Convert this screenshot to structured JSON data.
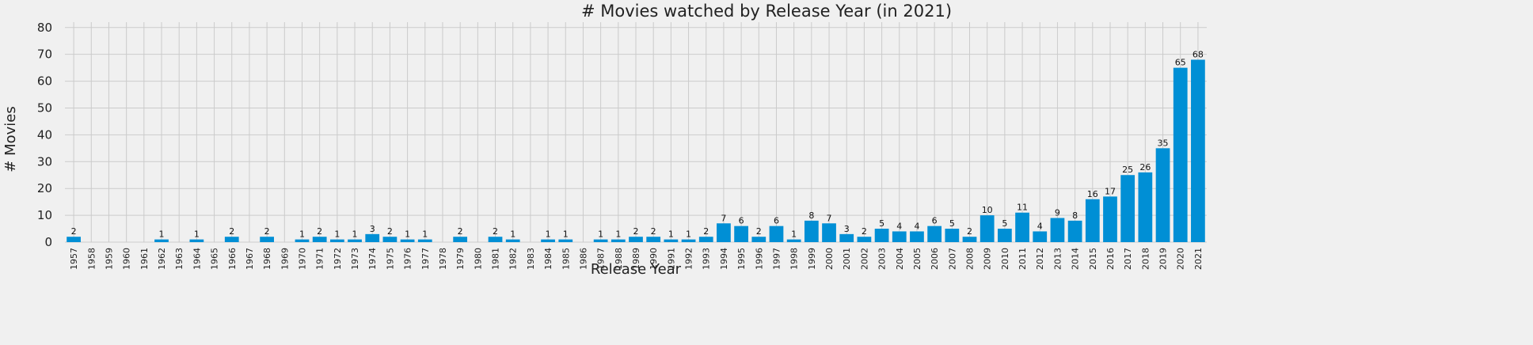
{
  "chart_data": {
    "type": "bar",
    "title": "# Movies watched by Release Year (in 2021)",
    "xlabel": "Release Year",
    "ylabel": "# Movies",
    "ylim": [
      0,
      82
    ],
    "yticks": [
      0,
      10,
      20,
      30,
      40,
      50,
      60,
      70,
      80
    ],
    "grid": true,
    "bar_color": "#008fd5",
    "background": "#f0f0f0",
    "categories": [
      "1957",
      "1958",
      "1959",
      "1960",
      "1961",
      "1962",
      "1963",
      "1964",
      "1965",
      "1966",
      "1967",
      "1968",
      "1969",
      "1970",
      "1971",
      "1972",
      "1973",
      "1974",
      "1975",
      "1976",
      "1977",
      "1978",
      "1979",
      "1980",
      "1981",
      "1982",
      "1983",
      "1984",
      "1985",
      "1986",
      "1987",
      "1988",
      "1989",
      "1990",
      "1991",
      "1992",
      "1993",
      "1994",
      "1995",
      "1996",
      "1997",
      "1998",
      "1999",
      "2000",
      "2001",
      "2002",
      "2003",
      "2004",
      "2005",
      "2006",
      "2007",
      "2008",
      "2009",
      "2010",
      "2011",
      "2012",
      "2013",
      "2014",
      "2015",
      "2016",
      "2017",
      "2018",
      "2019",
      "2020",
      "2021"
    ],
    "values": [
      2,
      0,
      0,
      0,
      0,
      1,
      0,
      1,
      0,
      2,
      0,
      2,
      0,
      1,
      2,
      1,
      1,
      3,
      2,
      1,
      1,
      0,
      2,
      0,
      2,
      1,
      0,
      1,
      1,
      0,
      1,
      1,
      2,
      2,
      1,
      1,
      2,
      7,
      6,
      2,
      6,
      1,
      8,
      7,
      3,
      2,
      5,
      4,
      4,
      6,
      5,
      2,
      10,
      5,
      11,
      4,
      9,
      8,
      16,
      17,
      25,
      26,
      35,
      65,
      68
    ]
  }
}
